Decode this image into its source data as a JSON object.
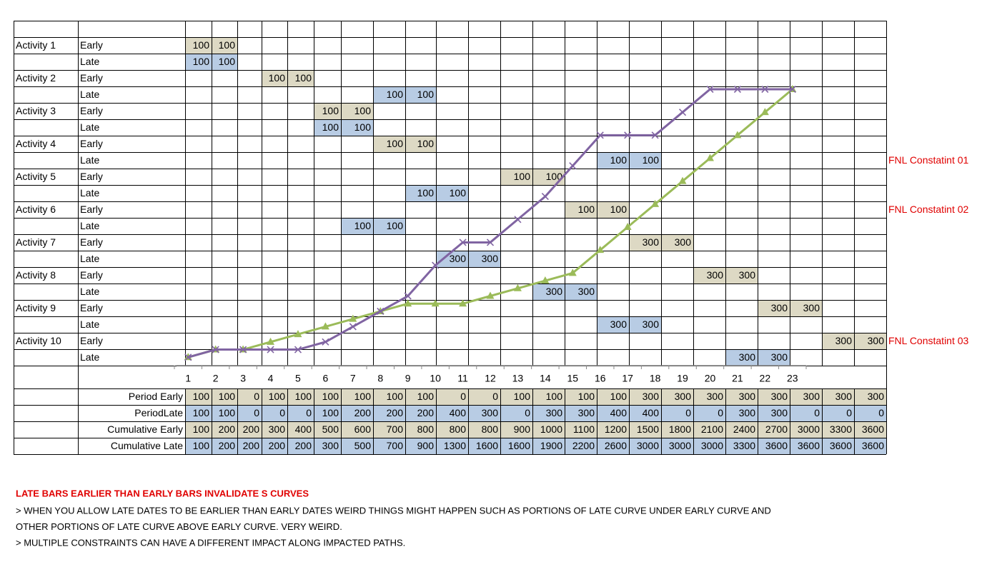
{
  "activities": [
    {
      "name": "Activity 1",
      "rows": [
        {
          "label": "Early",
          "values": [
            100,
            100,
            null,
            null,
            null,
            null,
            null,
            null,
            null,
            null,
            null,
            null,
            null,
            null,
            null,
            null,
            null,
            null,
            null,
            null,
            null,
            null,
            null
          ]
        },
        {
          "label": "Late",
          "values": [
            100,
            100,
            null,
            null,
            null,
            null,
            null,
            null,
            null,
            null,
            null,
            null,
            null,
            null,
            null,
            null,
            null,
            null,
            null,
            null,
            null,
            null,
            null
          ]
        }
      ]
    },
    {
      "name": "Activity 2",
      "rows": [
        {
          "label": "Early",
          "values": [
            null,
            null,
            null,
            100,
            100,
            null,
            null,
            null,
            null,
            null,
            null,
            null,
            null,
            null,
            null,
            null,
            null,
            null,
            null,
            null,
            null,
            null,
            null
          ]
        },
        {
          "label": "Late",
          "values": [
            null,
            null,
            null,
            null,
            null,
            null,
            null,
            100,
            100,
            null,
            null,
            null,
            null,
            null,
            null,
            null,
            null,
            null,
            null,
            null,
            null,
            null,
            null
          ]
        }
      ]
    },
    {
      "name": "Activity 3",
      "rows": [
        {
          "label": "Early",
          "values": [
            null,
            null,
            null,
            null,
            null,
            100,
            100,
            null,
            null,
            null,
            null,
            null,
            null,
            null,
            null,
            null,
            null,
            null,
            null,
            null,
            null,
            null,
            null
          ]
        },
        {
          "label": "Late",
          "values": [
            null,
            null,
            null,
            null,
            null,
            100,
            100,
            null,
            null,
            null,
            null,
            null,
            null,
            null,
            null,
            null,
            null,
            null,
            null,
            null,
            null,
            null,
            null
          ]
        }
      ]
    },
    {
      "name": "Activity 4",
      "rows": [
        {
          "label": "Early",
          "values": [
            null,
            null,
            null,
            null,
            null,
            null,
            null,
            100,
            100,
            null,
            null,
            null,
            null,
            null,
            null,
            null,
            null,
            null,
            null,
            null,
            null,
            null,
            null
          ]
        },
        {
          "label": "Late",
          "values": [
            null,
            null,
            null,
            null,
            null,
            null,
            null,
            null,
            null,
            null,
            null,
            null,
            null,
            null,
            100,
            100,
            null,
            null,
            null,
            null,
            null,
            null,
            null
          ],
          "note": "FNL Constatint 01"
        }
      ]
    },
    {
      "name": "Activity 5",
      "rows": [
        {
          "label": "Early",
          "values": [
            null,
            null,
            null,
            null,
            null,
            null,
            null,
            null,
            null,
            null,
            null,
            100,
            100,
            null,
            null,
            null,
            null,
            null,
            null,
            null,
            null,
            null,
            null
          ]
        },
        {
          "label": "Late",
          "values": [
            null,
            null,
            null,
            null,
            null,
            null,
            null,
            null,
            100,
            100,
            null,
            null,
            null,
            null,
            null,
            null,
            null,
            null,
            null,
            null,
            null,
            null,
            null
          ]
        }
      ]
    },
    {
      "name": "Activity 6",
      "rows": [
        {
          "label": "Early",
          "values": [
            null,
            null,
            null,
            null,
            null,
            null,
            null,
            null,
            null,
            null,
            null,
            null,
            null,
            100,
            100,
            null,
            null,
            null,
            null,
            null,
            null,
            null,
            null
          ],
          "note": "FNL Constatint 02"
        },
        {
          "label": "Late",
          "values": [
            null,
            null,
            null,
            null,
            null,
            null,
            100,
            100,
            null,
            null,
            null,
            null,
            null,
            null,
            null,
            null,
            null,
            null,
            null,
            null,
            null,
            null,
            null
          ]
        }
      ]
    },
    {
      "name": "Activity 7",
      "rows": [
        {
          "label": "Early",
          "values": [
            null,
            null,
            null,
            null,
            null,
            null,
            null,
            null,
            null,
            null,
            null,
            null,
            null,
            null,
            null,
            300,
            300,
            null,
            null,
            null,
            null,
            null,
            null
          ]
        },
        {
          "label": "Late",
          "values": [
            null,
            null,
            null,
            null,
            null,
            null,
            null,
            null,
            null,
            300,
            300,
            null,
            null,
            null,
            null,
            null,
            null,
            null,
            null,
            null,
            null,
            null,
            null
          ]
        }
      ]
    },
    {
      "name": "Activity 8",
      "rows": [
        {
          "label": "Early",
          "values": [
            null,
            null,
            null,
            null,
            null,
            null,
            null,
            null,
            null,
            null,
            null,
            null,
            null,
            null,
            null,
            null,
            null,
            300,
            300,
            null,
            null,
            null,
            null
          ]
        },
        {
          "label": "Late",
          "values": [
            null,
            null,
            null,
            null,
            null,
            null,
            null,
            null,
            null,
            null,
            null,
            null,
            300,
            300,
            null,
            null,
            null,
            null,
            null,
            null,
            null,
            null,
            null
          ]
        }
      ]
    },
    {
      "name": "Activity 9",
      "rows": [
        {
          "label": "Early",
          "values": [
            null,
            null,
            null,
            null,
            null,
            null,
            null,
            null,
            null,
            null,
            null,
            null,
            null,
            null,
            null,
            null,
            null,
            null,
            null,
            300,
            300,
            null,
            null
          ]
        },
        {
          "label": "Late",
          "values": [
            null,
            null,
            null,
            null,
            null,
            null,
            null,
            null,
            null,
            null,
            null,
            null,
            null,
            null,
            300,
            300,
            null,
            null,
            null,
            null,
            null,
            null,
            null
          ]
        }
      ]
    },
    {
      "name": "Activity 10",
      "rows": [
        {
          "label": "Early",
          "values": [
            null,
            null,
            null,
            null,
            null,
            null,
            null,
            null,
            null,
            null,
            null,
            null,
            null,
            null,
            null,
            null,
            null,
            null,
            null,
            null,
            null,
            300,
            300
          ],
          "note": "FNL Constatint 03"
        },
        {
          "label": "Late",
          "values": [
            null,
            null,
            null,
            null,
            null,
            null,
            null,
            null,
            null,
            null,
            null,
            null,
            null,
            null,
            null,
            null,
            null,
            null,
            300,
            300,
            null,
            null,
            null
          ]
        }
      ]
    }
  ],
  "x_labels": [
    1,
    2,
    3,
    4,
    5,
    6,
    7,
    8,
    9,
    10,
    11,
    12,
    13,
    14,
    15,
    16,
    17,
    18,
    19,
    20,
    21,
    22,
    23
  ],
  "summary": [
    {
      "label": "Period Early",
      "values": [
        100,
        100,
        0,
        100,
        100,
        100,
        100,
        100,
        100,
        0,
        0,
        100,
        100,
        100,
        100,
        300,
        300,
        300,
        300,
        300,
        300,
        300,
        300
      ]
    },
    {
      "label": "PeriodLate",
      "values": [
        100,
        100,
        0,
        0,
        0,
        100,
        200,
        200,
        200,
        400,
        300,
        0,
        300,
        300,
        400,
        400,
        0,
        0,
        300,
        300,
        0,
        0,
        0
      ]
    },
    {
      "label": "Cumulative Early",
      "values": [
        100,
        200,
        200,
        300,
        400,
        500,
        600,
        700,
        800,
        800,
        800,
        900,
        1000,
        1100,
        1200,
        1500,
        1800,
        2100,
        2400,
        2700,
        3000,
        3300,
        3600
      ],
      "curve": {
        "color": "#9bbb59",
        "marker": "triangle"
      }
    },
    {
      "label": "Cumulative Late",
      "values": [
        100,
        200,
        200,
        200,
        200,
        300,
        500,
        700,
        900,
        1300,
        1600,
        1600,
        1900,
        2200,
        2600,
        3000,
        3000,
        3000,
        3300,
        3600,
        3600,
        3600,
        3600
      ],
      "curve": {
        "color": "#8064a2",
        "marker": "x"
      }
    }
  ],
  "notes": {
    "title": "LATE BARS EARLIER THAN EARLY BARS INVALIDATE S CURVES",
    "lines": [
      "> WHEN YOU ALLOW LATE DATES TO BE EARLIER THAN EARLY DATES WEIRD THINGS MIGHT HAPPEN SUCH AS PORTIONS OF LATE CURVE UNDER EARLY CURVE AND",
      "OTHER PORTIONS OF LATE CURVE ABOVE EARLY CURVE. VERY WEIRD.",
      "> MULTIPLE CONSTRAINTS CAN HAVE A DIFFERENT IMPACT ALONG IMPACTED PATHS."
    ]
  }
}
